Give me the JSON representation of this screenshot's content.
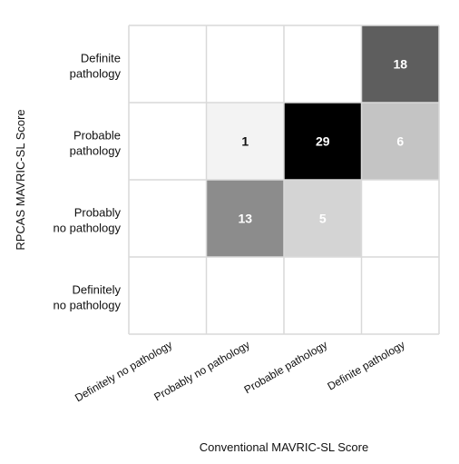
{
  "chart_data": {
    "type": "heatmap",
    "title": "",
    "xlabel": "Conventional MAVRIC-SL Score",
    "ylabel": "RPCAS MAVRIC-SL Score",
    "x_categories": [
      "Definitely no pathology",
      "Probably no pathology",
      "Probable pathology",
      "Definite pathology"
    ],
    "y_categories": [
      "Definitely no pathology",
      "Probably no pathology",
      "Probable pathology",
      "Definite pathology"
    ],
    "y_tick_lines": [
      [
        "Definitely",
        "no pathology"
      ],
      [
        "Probably",
        "no pathology"
      ],
      [
        "Probable",
        "pathology"
      ],
      [
        "Definite",
        "pathology"
      ]
    ],
    "cells": [
      {
        "x": "Probable pathology",
        "y": "Probably no pathology",
        "value": 5,
        "shade": "#d4d4d4",
        "text_color": "#ffffff"
      },
      {
        "x": "Probably no pathology",
        "y": "Probably no pathology",
        "value": 13,
        "shade": "#8c8c8c",
        "text_color": "#ffffff"
      },
      {
        "x": "Probably no pathology",
        "y": "Probable pathology",
        "value": 1,
        "shade": "#f3f3f3",
        "text_color": "#111111"
      },
      {
        "x": "Probable pathology",
        "y": "Probable pathology",
        "value": 29,
        "shade": "#000000",
        "text_color": "#ffffff"
      },
      {
        "x": "Definite pathology",
        "y": "Probable pathology",
        "value": 6,
        "shade": "#c4c4c4",
        "text_color": "#ffffff"
      },
      {
        "x": "Definite pathology",
        "y": "Definite pathology",
        "value": 18,
        "shade": "#5e5e5e",
        "text_color": "#ffffff"
      }
    ],
    "grid": true,
    "colors": {
      "grid": "#d9d9d9",
      "background": "#ffffff",
      "text": "#111111"
    }
  }
}
